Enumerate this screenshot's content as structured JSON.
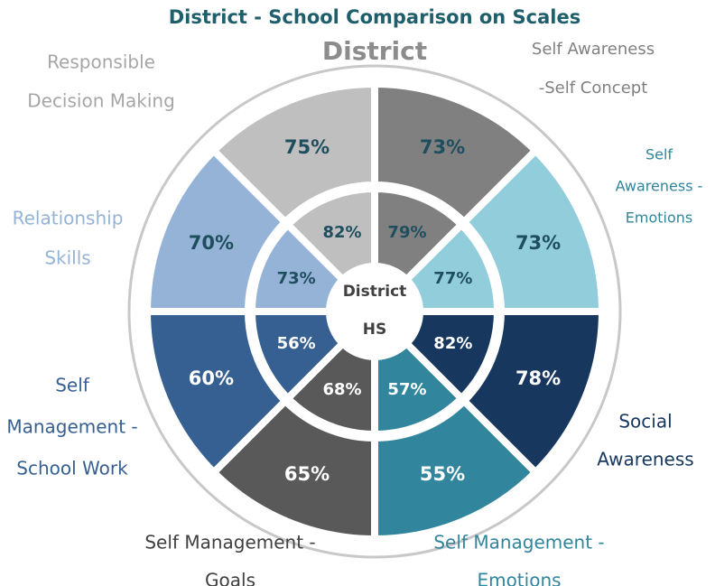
{
  "chart_data": {
    "type": "nested-donut",
    "title": "District - School Comparison on Scales",
    "center_label": [
      "District",
      "HS"
    ],
    "categories": [
      [
        "Self Awareness",
        "-Self Concept"
      ],
      [
        "Self",
        "Awareness -",
        "Emotions"
      ],
      [
        "Social",
        "Awareness"
      ],
      [
        "Self Management -",
        "Emotions"
      ],
      [
        "Self Management -",
        "Goals"
      ],
      [
        "Self",
        "Management -",
        "School Work"
      ],
      [
        "Relationship",
        "Skills"
      ],
      [
        "Responsible",
        "Decision Making"
      ]
    ],
    "colors": [
      "#808080",
      "#92cddc",
      "#17375e",
      "#31859c",
      "#595959",
      "#376092",
      "#95b3d7",
      "#bfbfbf"
    ],
    "series": [
      {
        "name": "District",
        "values": [
          73,
          73,
          78,
          55,
          65,
          60,
          70,
          75
        ],
        "value_labels": [
          "73%",
          "73%",
          "78%",
          "55%",
          "65%",
          "60%",
          "70%",
          "75%"
        ]
      },
      {
        "name": "HS",
        "values": [
          79,
          77,
          82,
          57,
          68,
          56,
          73,
          82
        ],
        "value_labels": [
          "79%",
          "77%",
          "82%",
          "57%",
          "68%",
          "56%",
          "73%",
          "82%"
        ]
      }
    ]
  }
}
